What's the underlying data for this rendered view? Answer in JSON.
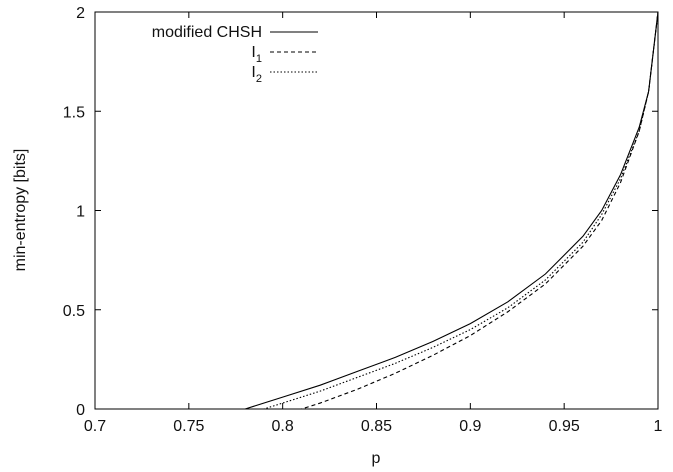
{
  "chart_data": {
    "type": "line",
    "title": "",
    "xlabel": "p",
    "ylabel": "min-entropy [bits]",
    "xlim": [
      0.7,
      1.0
    ],
    "ylim": [
      0,
      2
    ],
    "xticks": [
      "0.7",
      "0.75",
      "0.8",
      "0.85",
      "0.9",
      "0.95",
      "1"
    ],
    "yticks": [
      "0",
      "0.5",
      "1",
      "1.5",
      "2"
    ],
    "grid": false,
    "legend_position": "top-left",
    "series": [
      {
        "name": "modified CHSH",
        "style": "solid",
        "x": [
          0.7,
          0.75,
          0.78,
          0.8,
          0.82,
          0.84,
          0.86,
          0.88,
          0.9,
          0.92,
          0.94,
          0.96,
          0.97,
          0.98,
          0.99,
          0.995,
          1.0
        ],
        "y": [
          0,
          0,
          0,
          0.06,
          0.12,
          0.19,
          0.26,
          0.34,
          0.43,
          0.54,
          0.68,
          0.87,
          1.0,
          1.18,
          1.42,
          1.6,
          2.0
        ]
      },
      {
        "name": "I",
        "subscript": "1",
        "style": "dashed",
        "x": [
          0.7,
          0.75,
          0.8,
          0.81,
          0.82,
          0.84,
          0.86,
          0.88,
          0.9,
          0.92,
          0.94,
          0.96,
          0.97,
          0.98,
          0.99,
          0.995,
          1.0
        ],
        "y": [
          0,
          0,
          0,
          0,
          0.03,
          0.1,
          0.18,
          0.27,
          0.37,
          0.49,
          0.63,
          0.82,
          0.95,
          1.14,
          1.4,
          1.6,
          2.0
        ]
      },
      {
        "name": "I",
        "subscript": "2",
        "style": "dotted",
        "x": [
          0.7,
          0.75,
          0.78,
          0.79,
          0.8,
          0.82,
          0.84,
          0.86,
          0.88,
          0.9,
          0.92,
          0.94,
          0.96,
          0.97,
          0.98,
          0.99,
          0.995,
          1.0
        ],
        "y": [
          0,
          0,
          0,
          0,
          0.03,
          0.09,
          0.16,
          0.23,
          0.31,
          0.4,
          0.51,
          0.65,
          0.84,
          0.98,
          1.16,
          1.4,
          1.6,
          2.0
        ]
      }
    ]
  }
}
